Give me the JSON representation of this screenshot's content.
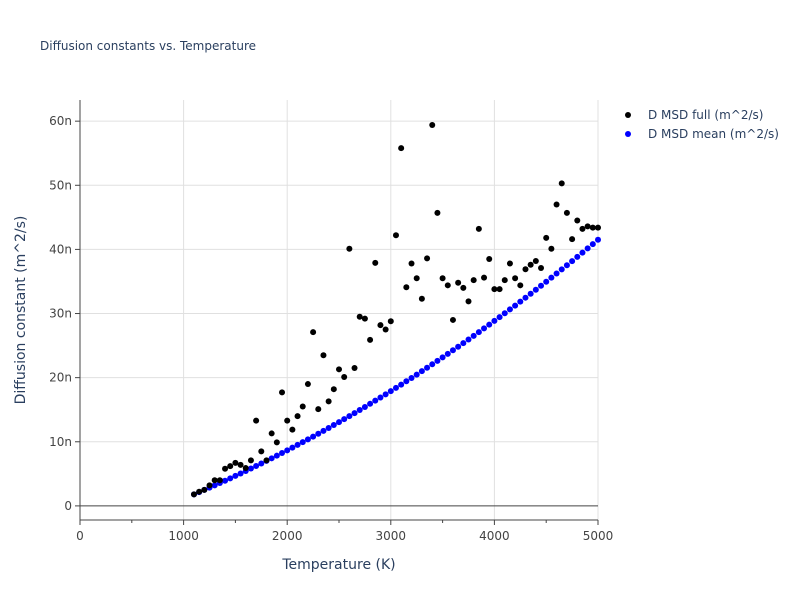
{
  "chart_data": {
    "type": "scatter",
    "title": "Diffusion constants vs. Temperature",
    "xlabel": "Temperature (K)",
    "ylabel": "Diffusion constant (m^2/s)",
    "xlim": [
      0,
      5000
    ],
    "ylim": [
      -2.2,
      63.3
    ],
    "y_unit_scale": "n (1e-9)",
    "x_ticks": [
      0,
      1000,
      2000,
      3000,
      4000,
      5000
    ],
    "x_tick_labels": [
      "0",
      "1000",
      "2000",
      "3000",
      "4000",
      "5000"
    ],
    "y_ticks": [
      0,
      10,
      20,
      30,
      40,
      50,
      60
    ],
    "y_tick_labels": [
      "0",
      "10n",
      "20n",
      "30n",
      "40n",
      "50n",
      "60n"
    ],
    "grid": true,
    "legend_position": "top-right",
    "x": [
      1100,
      1150,
      1200,
      1250,
      1300,
      1350,
      1400,
      1450,
      1500,
      1550,
      1600,
      1650,
      1700,
      1750,
      1800,
      1850,
      1900,
      1950,
      2000,
      2050,
      2100,
      2150,
      2200,
      2250,
      2300,
      2350,
      2400,
      2450,
      2500,
      2550,
      2600,
      2650,
      2700,
      2750,
      2800,
      2850,
      2900,
      2950,
      3000,
      3050,
      3100,
      3150,
      3200,
      3250,
      3300,
      3350,
      3400,
      3450,
      3500,
      3550,
      3600,
      3650,
      3700,
      3750,
      3800,
      3850,
      3900,
      3950,
      4000,
      4050,
      4100,
      4150,
      4200,
      4250,
      4300,
      4350,
      4400,
      4450,
      4500,
      4550,
      4600,
      4650,
      4700,
      4750,
      4800,
      4850,
      4900,
      4950,
      5000
    ],
    "series": [
      {
        "name": "D MSD full (m^2/s)",
        "color": "#000000",
        "values": [
          1.8,
          2.2,
          2.5,
          3.2,
          4.0,
          4.0,
          5.8,
          6.2,
          6.7,
          6.4,
          5.9,
          7.1,
          13.3,
          8.5,
          7.1,
          11.3,
          9.9,
          17.7,
          13.3,
          11.9,
          14.0,
          15.5,
          19.0,
          27.1,
          15.1,
          23.5,
          16.3,
          18.2,
          21.3,
          20.1,
          40.1,
          21.5,
          29.5,
          29.2,
          25.9,
          37.9,
          28.2,
          27.5,
          28.8,
          42.2,
          55.8,
          34.1,
          37.8,
          35.5,
          32.3,
          38.6,
          59.4,
          45.7,
          35.5,
          34.4,
          29.0,
          34.8,
          34.0,
          31.9,
          35.2,
          43.2,
          35.6,
          38.5,
          33.8,
          33.8,
          35.2,
          37.8,
          35.5,
          34.4,
          36.9,
          37.6,
          38.2,
          37.1,
          41.8,
          40.1,
          47.0,
          50.3,
          45.7,
          41.6,
          44.5,
          43.2,
          43.6,
          43.4,
          43.4
        ]
      },
      {
        "name": "D MSD mean (m^2/s)",
        "color": "#0000ff",
        "values": [
          1.8,
          2.14,
          2.49,
          2.85,
          3.2,
          3.57,
          3.93,
          4.3,
          4.68,
          5.06,
          5.44,
          5.83,
          6.22,
          6.62,
          7.02,
          7.42,
          7.83,
          8.24,
          8.66,
          9.08,
          9.51,
          9.94,
          10.37,
          10.81,
          11.25,
          11.7,
          12.15,
          12.61,
          13.07,
          13.53,
          14.0,
          14.47,
          14.95,
          15.43,
          15.92,
          16.41,
          16.9,
          17.4,
          17.9,
          18.41,
          18.92,
          19.43,
          19.95,
          20.48,
          21.01,
          21.54,
          22.08,
          22.62,
          23.16,
          23.71,
          24.27,
          24.82,
          25.39,
          25.95,
          26.52,
          27.1,
          27.68,
          28.26,
          28.85,
          29.44,
          30.04,
          30.64,
          31.24,
          31.85,
          32.47,
          33.08,
          33.71,
          34.33,
          34.96,
          35.6,
          36.24,
          36.88,
          37.53,
          38.18,
          38.84,
          39.5,
          40.16,
          40.83,
          41.5
        ]
      }
    ]
  }
}
